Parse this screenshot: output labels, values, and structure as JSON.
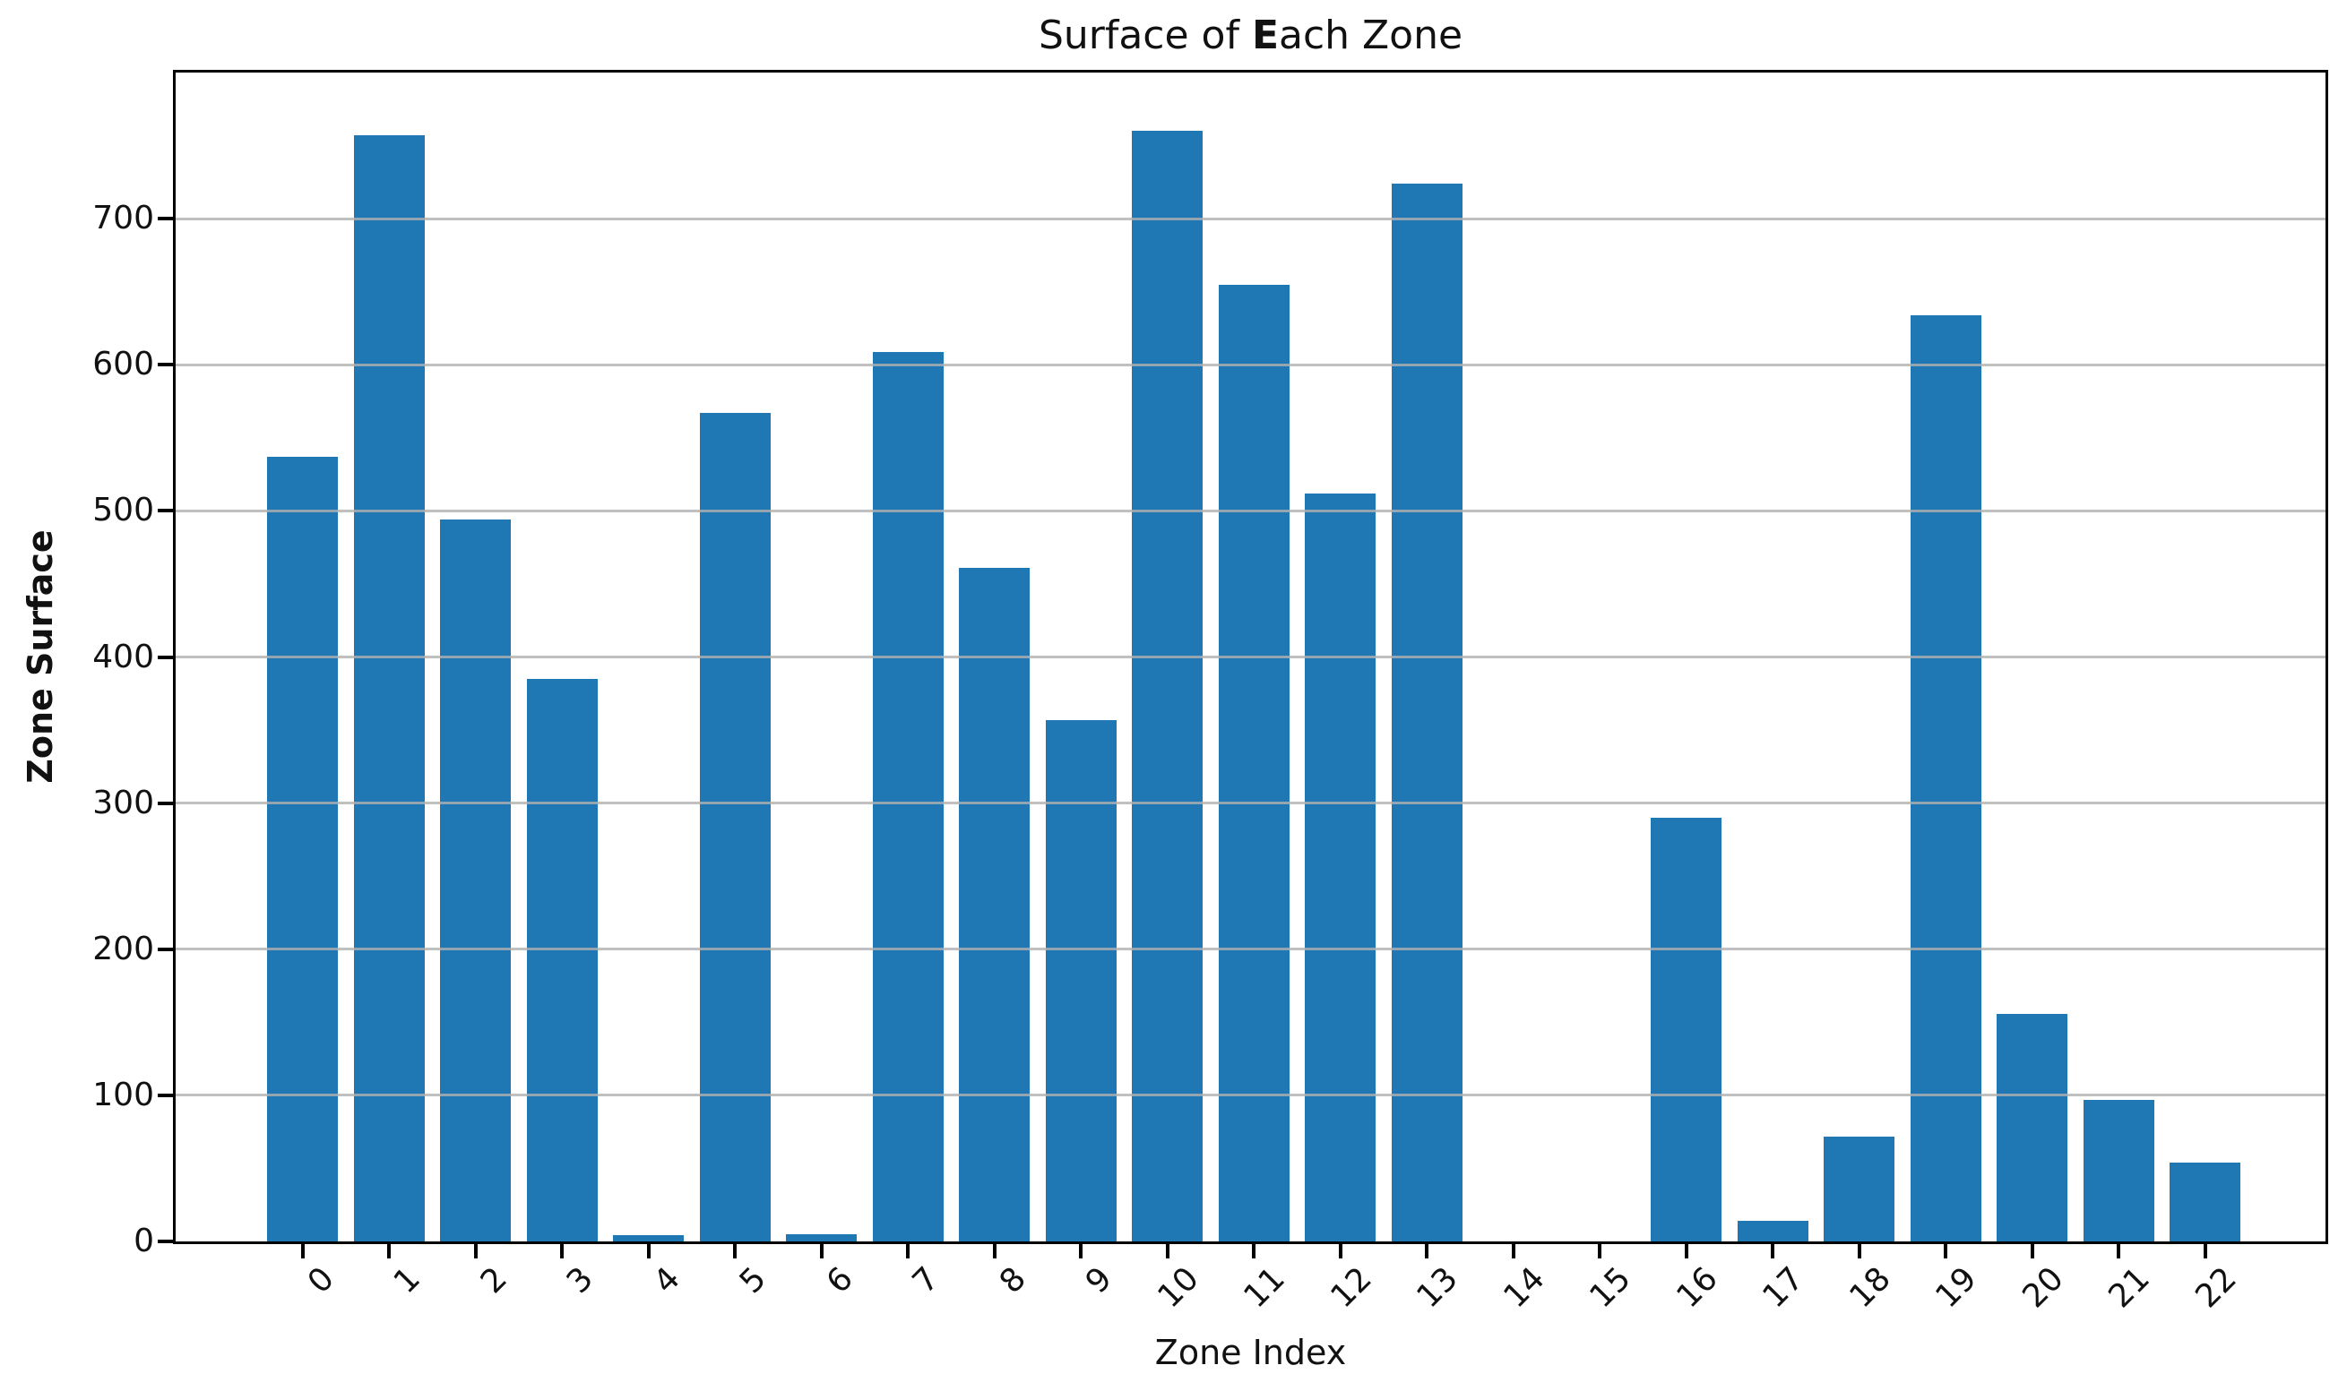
{
  "chart_data": {
    "type": "bar",
    "title": "Surface of Each Zone",
    "title_parts": {
      "prefix": "Surface of ",
      "bold": "E",
      "suffix": "ach Zone"
    },
    "xlabel": "Zone Index",
    "ylabel": "Zone Surface",
    "categories": [
      "0",
      "1",
      "2",
      "3",
      "4",
      "5",
      "6",
      "7",
      "8",
      "9",
      "10",
      "11",
      "12",
      "13",
      "14",
      "15",
      "16",
      "17",
      "18",
      "19",
      "20",
      "21",
      "22"
    ],
    "values": [
      537,
      757,
      494,
      385,
      4,
      567,
      5,
      609,
      461,
      357,
      760,
      655,
      512,
      724,
      0,
      0,
      290,
      14,
      72,
      634,
      156,
      97,
      54
    ],
    "yticks": [
      0,
      100,
      200,
      300,
      400,
      500,
      600,
      700
    ],
    "ylim": [
      0,
      800
    ],
    "grid": "horizontal",
    "legend": "none",
    "bar_color": "#1f77b4",
    "grid_color": "#b0b0b0",
    "axis_color": "#000000",
    "text_color": "#111111"
  }
}
